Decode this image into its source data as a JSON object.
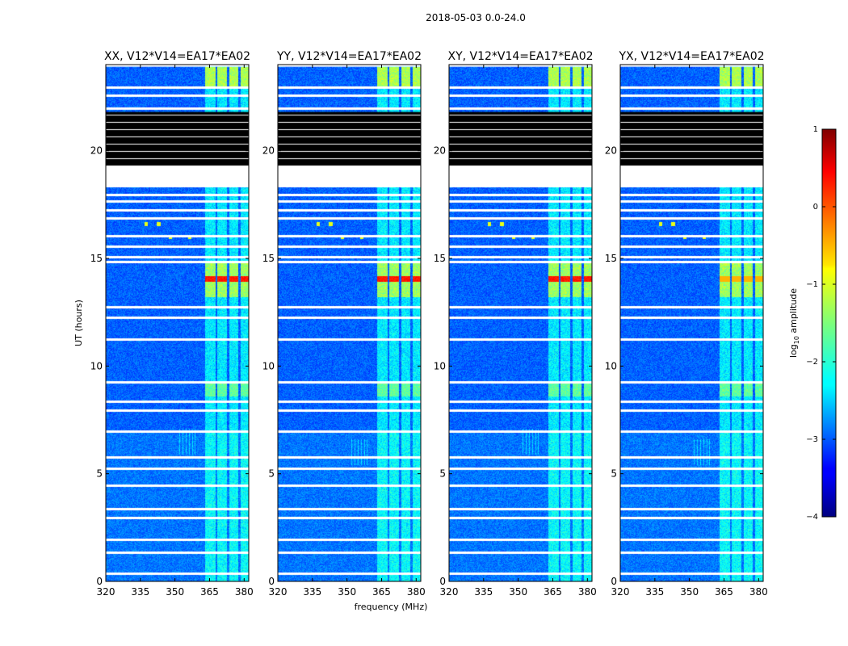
{
  "chart_data": {
    "type": "heatmap",
    "title": "2018-05-03 0.0-24.0",
    "xlabel": "frequency (MHz)",
    "ylabel": "UT (hours)",
    "xlim": [
      320,
      382
    ],
    "ylim": [
      0,
      24
    ],
    "x_ticks": [
      320,
      335,
      350,
      365,
      380
    ],
    "y_ticks": [
      0,
      5,
      10,
      15,
      20
    ],
    "x_tick_labels": [
      "320",
      "335",
      "350",
      "365",
      "380"
    ],
    "y_tick_labels": [
      "0",
      "5",
      "10",
      "15",
      "20"
    ],
    "panels": [
      {
        "title": "XX, V12*V14=EA17*EA02",
        "spike_hours": [
          14.05,
          16.6
        ],
        "stripe_hours": [
          6.5
        ]
      },
      {
        "title": "YY, V12*V14=EA17*EA02",
        "spike_hours": [
          14.05,
          16.6
        ],
        "stripe_hours": [
          6.0
        ]
      },
      {
        "title": "XY, V12*V14=EA17*EA02",
        "spike_hours": [
          14.05,
          16.6
        ],
        "stripe_hours": [
          6.5
        ]
      },
      {
        "title": "YX, V12*V14=EA17*EA02",
        "spike_hours": [
          14.05,
          16.6
        ],
        "stripe_hours": [
          6.0
        ]
      }
    ],
    "colorbar": {
      "label": "log10 amplitude",
      "label_main": "log",
      "label_sub": "10",
      "label_rest": " amplitude",
      "range": [
        -4,
        1
      ],
      "ticks": [
        1,
        0,
        -1,
        -2,
        -3,
        -4
      ],
      "tick_labels": [
        "1",
        "0",
        "−1",
        "−2",
        "−3",
        "−4"
      ]
    },
    "bright_channel_bands_mhz": [
      [
        363,
        367.5
      ],
      [
        368.5,
        372.5
      ],
      [
        373.5,
        377.5
      ],
      [
        378.5,
        382
      ]
    ],
    "flagged_hour_ranges": [
      [
        18.3,
        19.3
      ],
      [
        23.9,
        24
      ]
    ],
    "blank_hour_ranges": [
      [
        19.3,
        21.8
      ]
    ],
    "flagged_rows_hours": [
      0.4,
      1.4,
      2.0,
      3.0,
      3.4,
      4.5,
      5.3,
      5.8,
      7.0,
      8.0,
      8.4,
      9.3,
      11.3,
      12.3,
      12.8,
      14.9,
      15.1,
      15.6,
      16.1,
      16.9,
      17.3,
      17.7,
      18.0,
      22.0,
      22.6,
      23.0
    ]
  }
}
